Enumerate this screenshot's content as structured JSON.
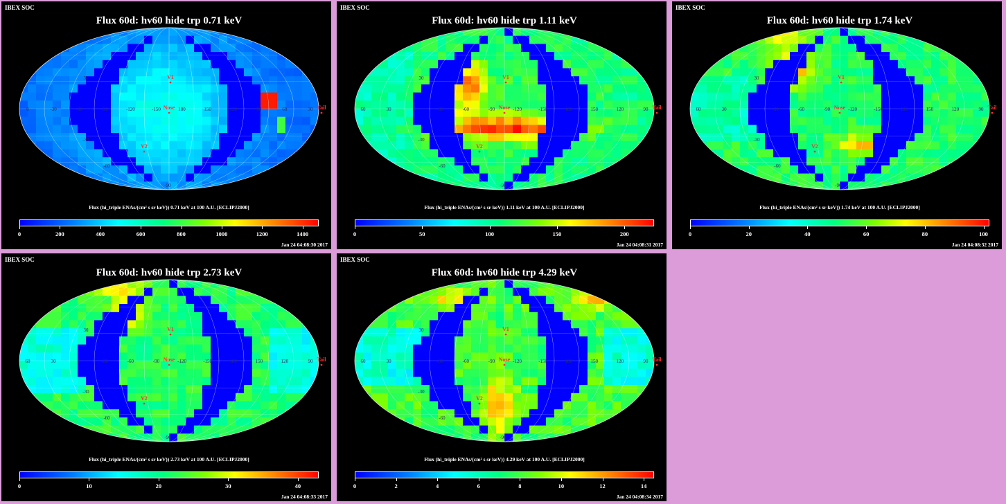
{
  "panels": [
    {
      "header": "IBEX SOC",
      "title": "Flux 60d: hv60 hide trp 0.71 keV",
      "colorbar_label": "Flux (hi_triple ENAs/(cm² s sr keV)) 0.71 keV at 100 A.U. [ECLIPJ2000]",
      "colorbar_ticks": [
        "0",
        "200",
        "400",
        "600",
        "800",
        "1000",
        "1200",
        "1400"
      ],
      "colorbar_max": 1480,
      "timestamp": "Jan 24 04:08:30 2017",
      "tail_label": "Tail",
      "nose_label": "Nose",
      "v1_label": "V1",
      "v2_label": "V2",
      "lon_labels": [
        "0",
        "-30",
        "-60",
        "-90",
        "-120",
        "-150",
        "180",
        "150",
        "120",
        "90",
        "60",
        "30"
      ],
      "lat_labels": [
        "30",
        "-30",
        "-60",
        "-90"
      ]
    },
    {
      "header": "IBEX SOC",
      "title": "Flux 60d: hv60 hide trp 1.11 keV",
      "colorbar_label": "Flux (hi_triple ENAs/(cm² s sr keV)) 1.11 keV at 100 A.U. [ECLIPJ2000]",
      "colorbar_ticks": [
        "0",
        "50",
        "100",
        "150",
        "200"
      ],
      "colorbar_max": 222,
      "timestamp": "Jan 24 04:08:31 2017",
      "tail_label": "Tail",
      "nose_label": "Nose",
      "v1_label": "V1",
      "v2_label": "V2",
      "lon_labels": [
        "60",
        "30",
        "0",
        "-30",
        "-60",
        "-90",
        "-120",
        "-150",
        "180",
        "150",
        "120",
        "90"
      ],
      "lat_labels": [
        "30",
        "-30",
        "-60",
        "-90"
      ]
    },
    {
      "header": "IBEX SOC",
      "title": "Flux 60d: hv60 hide trp 1.74 keV",
      "colorbar_label": "Flux (hi_triple ENAs/(cm² s sr keV)) 1.74 keV at 100 A.U. [ECLIPJ2000]",
      "colorbar_ticks": [
        "0",
        "20",
        "40",
        "60",
        "80",
        "100"
      ],
      "colorbar_max": 102,
      "timestamp": "Jan 24 04:08:32 2017",
      "tail_label": "Tail",
      "nose_label": "Nose",
      "v1_label": "V1",
      "v2_label": "V2",
      "lon_labels": [
        "60",
        "30",
        "0",
        "-30",
        "-60",
        "-90",
        "-120",
        "-150",
        "180",
        "150",
        "120",
        "90"
      ],
      "lat_labels": [
        "30",
        "-30",
        "-60",
        "-90"
      ]
    },
    {
      "header": "IBEX SOC",
      "title": "Flux 60d: hv60 hide trp 2.73 keV",
      "colorbar_label": "Flux (hi_triple ENAs/(cm² s sr keV)) 2.73 keV at 100 A.U. [ECLIPJ2000]",
      "colorbar_ticks": [
        "0",
        "10",
        "20",
        "30",
        "40"
      ],
      "colorbar_max": 43,
      "timestamp": "Jan 24 04:08:33 2017",
      "tail_label": "Tail",
      "nose_label": "Nose",
      "v1_label": "V1",
      "v2_label": "V2",
      "lon_labels": [
        "60",
        "30",
        "0",
        "-30",
        "-60",
        "-90",
        "-120",
        "-150",
        "180",
        "150",
        "120",
        "90"
      ],
      "lat_labels": [
        "30",
        "-30",
        "-60",
        "-90"
      ]
    },
    {
      "header": "IBEX SOC",
      "title": "Flux 60d: hv60 hide trp 4.29 keV",
      "colorbar_label": "Flux (hi_triple ENAs/(cm² s sr keV)) 4.29 keV at 100 A.U. [ECLIPJ2000]",
      "colorbar_ticks": [
        "0",
        "2",
        "4",
        "6",
        "8",
        "10",
        "12",
        "14"
      ],
      "colorbar_max": 14.5,
      "timestamp": "Jan 24 04:08:34 2017",
      "tail_label": "Tail",
      "nose_label": "Nose",
      "v1_label": "V1",
      "v2_label": "V2",
      "lon_labels": [
        "60",
        "30",
        "0",
        "-30",
        "-60",
        "-90",
        "-120",
        "-150",
        "180",
        "150",
        "120",
        "90"
      ],
      "lat_labels": [
        "30",
        "-30",
        "-60",
        "-90"
      ]
    }
  ],
  "chart_data": [
    {
      "type": "heatmap",
      "projection": "aitoff",
      "title": "Flux 60d: hv60 hide trp 0.71 keV",
      "energy_keV": 0.71,
      "colorbar_range": [
        0,
        1480
      ],
      "colormap": "rainbow"
    },
    {
      "type": "heatmap",
      "projection": "aitoff",
      "title": "Flux 60d: hv60 hide trp 1.11 keV",
      "energy_keV": 1.11,
      "colorbar_range": [
        0,
        222
      ],
      "colormap": "rainbow"
    },
    {
      "type": "heatmap",
      "projection": "aitoff",
      "title": "Flux 60d: hv60 hide trp 1.74 keV",
      "energy_keV": 1.74,
      "colorbar_range": [
        0,
        102
      ],
      "colormap": "rainbow"
    },
    {
      "type": "heatmap",
      "projection": "aitoff",
      "title": "Flux 60d: hv60 hide trp 2.73 keV",
      "energy_keV": 2.73,
      "colorbar_range": [
        0,
        43
      ],
      "colormap": "rainbow"
    },
    {
      "type": "heatmap",
      "projection": "aitoff",
      "title": "Flux 60d: hv60 hide trp 4.29 keV",
      "energy_keV": 4.29,
      "colorbar_range": [
        0,
        14.5
      ],
      "colormap": "rainbow"
    }
  ],
  "colors": {
    "background": "#dc9cd9",
    "panel": "#000000",
    "gap": "#0000ff",
    "label_red": "#ff3030",
    "grid": "#dddddd"
  }
}
